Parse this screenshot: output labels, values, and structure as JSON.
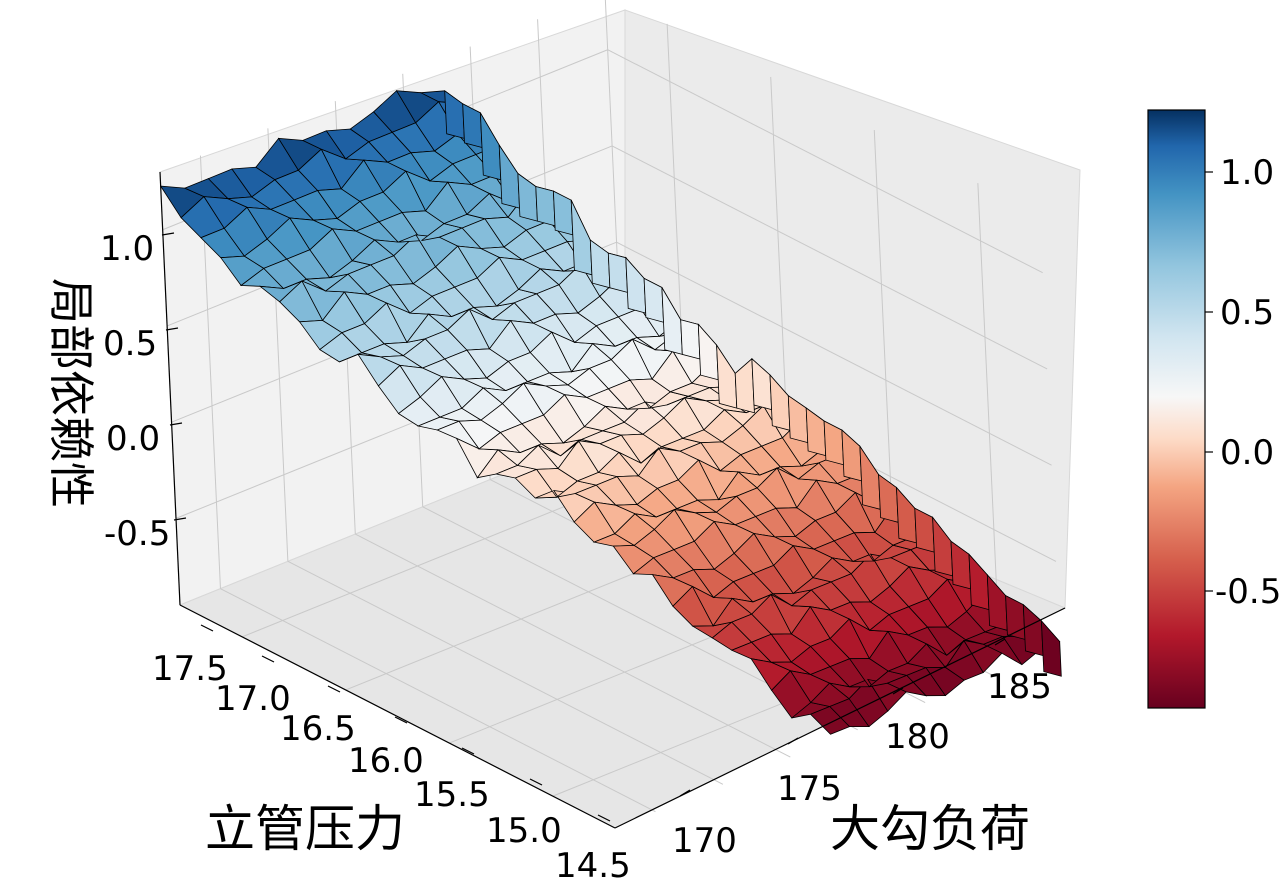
{
  "chart_data": {
    "type": "surface3d",
    "title": "",
    "x_axis": {
      "label": "大勾负荷",
      "range": [
        167,
        188
      ],
      "ticks": [
        170,
        175,
        180,
        185
      ],
      "tick_labels": [
        "170",
        "175",
        "180",
        "185"
      ]
    },
    "y_axis": {
      "label": "立管压力",
      "range": [
        14.5,
        17.8
      ],
      "ticks": [
        14.5,
        15.0,
        15.5,
        16.0,
        16.5,
        17.0,
        17.5
      ],
      "tick_labels": [
        "14.5",
        "15.0",
        "15.5",
        "16.0",
        "16.5",
        "17.0",
        "17.5"
      ]
    },
    "z_axis": {
      "label": "局部依赖性",
      "range": [
        -0.95,
        1.3
      ],
      "ticks": [
        -0.5,
        0.0,
        0.5,
        1.0
      ],
      "tick_labels": [
        "-0.5",
        "0.0",
        "0.5",
        "1.0"
      ]
    },
    "surface_profile_along_x": {
      "x": [
        167.0,
        168.5,
        170.0,
        171.5,
        173.0,
        174.5,
        176.0,
        177.5,
        179.0,
        180.5,
        182.0,
        183.5,
        185.0,
        186.5,
        188.0
      ],
      "z": [
        1.15,
        0.95,
        0.8,
        0.62,
        0.5,
        0.32,
        0.18,
        0.08,
        0.0,
        -0.12,
        -0.28,
        -0.45,
        -0.6,
        -0.8,
        -0.9
      ]
    },
    "colorbar": {
      "colormap": "RdBu",
      "range": [
        -0.95,
        1.22
      ],
      "ticks": [
        -0.5,
        0.0,
        0.5,
        1.0
      ],
      "tick_labels": [
        "-0.5",
        "0.0",
        "0.5",
        "1.0"
      ]
    },
    "grid": true
  }
}
